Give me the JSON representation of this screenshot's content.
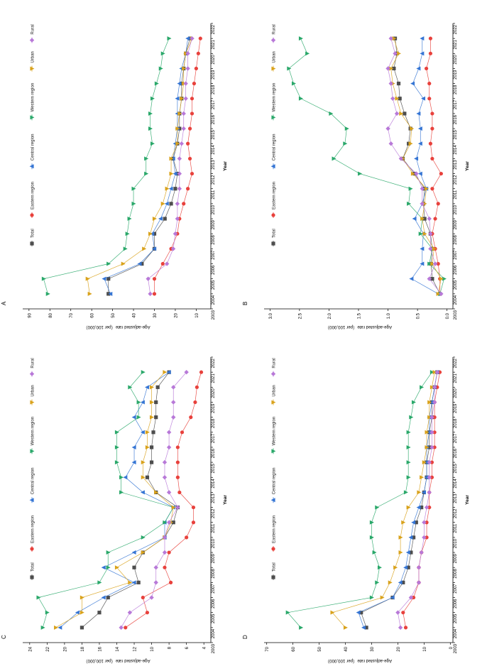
{
  "colors": {
    "Total": "#4d4d4d",
    "Eastern region": "#e8413c",
    "Central region": "#3575d4",
    "Western region": "#2aa86a",
    "Urban": "#d9a21b",
    "Rural": "#b879d8"
  },
  "markers": {
    "Total": "square",
    "Eastern region": "circle",
    "Central region": "triangle-up",
    "Western region": "triangle-down",
    "Urban": "triangle-down",
    "Rural": "diamond"
  },
  "chart_data": [
    {
      "panel": "A",
      "type": "line",
      "ylabel": "Age-adjusted rate（per 100,000）",
      "xlabel": "Year",
      "x": [
        2004,
        2005,
        2006,
        2007,
        2008,
        2009,
        2010,
        2011,
        2012,
        2013,
        2014,
        2015,
        2016,
        2017,
        2018,
        2019,
        2020,
        2021
      ],
      "xlim": [
        2003,
        2022
      ],
      "ylim": [
        3,
        93
      ],
      "yticks": [
        10,
        20,
        30,
        40,
        50,
        60,
        70,
        80,
        90
      ],
      "legend": [
        "Total",
        "Eastern region",
        "Central region",
        "Western region",
        "Urban",
        "Rural"
      ],
      "series": [
        {
          "name": "Total",
          "values": [
            52,
            52,
            36,
            30,
            30,
            25,
            22,
            20,
            19,
            21,
            19,
            18,
            18,
            17,
            17,
            16,
            15,
            13
          ]
        },
        {
          "name": "Eastern region",
          "values": [
            30,
            30,
            26,
            22,
            19,
            18,
            16,
            14,
            12,
            13,
            14,
            13,
            12,
            12,
            11,
            10,
            9,
            8
          ]
        },
        {
          "name": "Central region",
          "values": [
            51,
            54,
            37,
            30,
            31,
            27,
            24,
            22,
            20,
            21,
            20,
            19,
            19,
            19,
            18,
            17,
            15,
            14
          ]
        },
        {
          "name": "Western region",
          "values": [
            81,
            83,
            52,
            44,
            43,
            42,
            40,
            40,
            34,
            34,
            31,
            32,
            32,
            31,
            29,
            27,
            26,
            23
          ]
        },
        {
          "name": "Urban",
          "values": [
            61,
            62,
            45,
            35,
            32,
            30,
            26,
            24,
            22,
            22,
            19,
            19,
            18,
            17,
            16,
            16,
            15,
            12
          ]
        },
        {
          "name": "Rural",
          "values": [
            32,
            33,
            24,
            21,
            20,
            19,
            19,
            18,
            18,
            18,
            17,
            16,
            16,
            15,
            15,
            14,
            14,
            12
          ]
        }
      ]
    },
    {
      "panel": "B",
      "type": "line",
      "ylabel": "Age-adjusted rate（per 100,000）",
      "xlabel": "Year",
      "x": [
        2004,
        2005,
        2006,
        2007,
        2008,
        2009,
        2010,
        2011,
        2012,
        2013,
        2014,
        2015,
        2016,
        2017,
        2018,
        2019,
        2020,
        2021
      ],
      "xlim": [
        2003,
        2022
      ],
      "ylim": [
        -0.1,
        3.1
      ],
      "yticks": [
        0.0,
        0.5,
        1.0,
        1.5,
        2.0,
        2.5,
        3.0
      ],
      "legend": [
        "Total",
        "Eastern region",
        "Central region",
        "Western region",
        "Urban",
        "Rural"
      ],
      "series": [
        {
          "name": "Total",
          "values": [
            0.12,
            0.25,
            0.27,
            0.25,
            0.28,
            0.38,
            0.4,
            0.38,
            0.55,
            0.75,
            0.65,
            0.62,
            0.72,
            0.8,
            0.82,
            0.9,
            0.85,
            0.88
          ]
        },
        {
          "name": "Eastern region",
          "values": [
            0.12,
            0.12,
            0.15,
            0.2,
            0.25,
            0.2,
            0.15,
            0.25,
            0.1,
            0.25,
            0.28,
            0.25,
            0.25,
            0.3,
            0.3,
            0.35,
            0.28,
            0.28
          ]
        },
        {
          "name": "Central region",
          "values": [
            0.15,
            0.6,
            0.42,
            0.42,
            0.4,
            0.55,
            0.42,
            0.35,
            0.45,
            0.52,
            0.45,
            0.45,
            0.48,
            0.4,
            0.58,
            0.48,
            0.42,
            0.42
          ]
        },
        {
          "name": "Western region",
          "values": [
            0.12,
            0.05,
            0.3,
            0.25,
            0.45,
            0.42,
            0.65,
            0.62,
            1.48,
            1.92,
            1.73,
            1.7,
            1.97,
            2.48,
            2.6,
            2.68,
            2.37,
            2.48
          ]
        },
        {
          "name": "Urban",
          "values": [
            0.15,
            0.1,
            0.25,
            0.22,
            0.38,
            0.42,
            0.38,
            0.35,
            0.58,
            0.75,
            0.62,
            0.6,
            0.78,
            0.85,
            0.92,
            0.95,
            0.82,
            0.9
          ]
        },
        {
          "name": "Rural",
          "values": [
            0.1,
            0.3,
            0.2,
            0.28,
            0.28,
            0.3,
            0.42,
            0.42,
            0.52,
            0.78,
            0.95,
            1.0,
            0.85,
            0.92,
            0.95,
            1.0,
            0.88,
            0.95
          ]
        }
      ]
    },
    {
      "panel": "C",
      "type": "line",
      "ylabel": "Age-adjusted rate（per 100,000）",
      "xlabel": "Year",
      "x": [
        2004,
        2005,
        2006,
        2007,
        2008,
        2009,
        2010,
        2011,
        2012,
        2013,
        2014,
        2015,
        2016,
        2017,
        2018,
        2019,
        2020,
        2021
      ],
      "xlim": [
        2003,
        2022
      ],
      "ylim": [
        3.2,
        24.8
      ],
      "yticks": [
        4,
        6,
        8,
        10,
        12,
        14,
        16,
        18,
        20,
        22,
        24
      ],
      "legend": [
        "Total",
        "Eastern region",
        "Central region",
        "Western region",
        "Urban",
        "Rural"
      ],
      "series": [
        {
          "name": "Total",
          "values": [
            18,
            16,
            15,
            11.5,
            12,
            11,
            8.5,
            7.5,
            7,
            9.5,
            10.5,
            10,
            10,
            9.8,
            9.5,
            9.5,
            9.3,
            8
          ]
        },
        {
          "name": "Eastern region",
          "values": [
            13,
            10.5,
            11,
            7.8,
            8.5,
            8,
            6,
            5.2,
            5.2,
            6.8,
            7,
            7,
            7,
            6.5,
            5.5,
            5,
            4.8,
            4.3
          ]
        },
        {
          "name": "Central region",
          "values": [
            20.5,
            18.5,
            15.5,
            12,
            15.5,
            12,
            8.5,
            8.5,
            7.5,
            11,
            13,
            12,
            12,
            11,
            12,
            11,
            10.5,
            8
          ]
        },
        {
          "name": "Western region",
          "values": [
            22.5,
            22,
            23,
            16,
            15,
            15,
            11,
            8.5,
            7.5,
            13.5,
            13.5,
            14,
            14,
            14,
            11.5,
            11.5,
            12.5,
            11
          ]
        },
        {
          "name": "Urban",
          "values": [
            21,
            18,
            18,
            12.5,
            14,
            11,
            8.5,
            7.8,
            7.5,
            9.5,
            11,
            11,
            10.5,
            10.5,
            10,
            10,
            10,
            8.5
          ]
        },
        {
          "name": "Rural",
          "values": [
            13.5,
            12.5,
            10,
            9.5,
            9.5,
            8.5,
            8.5,
            8,
            7,
            8,
            8.5,
            8.5,
            8,
            8,
            7.5,
            7.5,
            7.5,
            6
          ]
        }
      ]
    },
    {
      "panel": "D",
      "type": "line",
      "ylabel": "Age-adjusted rate（per 100,000）",
      "xlabel": "Year",
      "x": [
        2004,
        2005,
        2006,
        2007,
        2008,
        2009,
        2010,
        2011,
        2012,
        2013,
        2014,
        2015,
        2016,
        2017,
        2018,
        2019,
        2020,
        2021
      ],
      "xlim": [
        2003,
        2022
      ],
      "ylim": [
        -1,
        71
      ],
      "yticks": [
        0,
        10,
        20,
        30,
        40,
        50,
        60,
        70
      ],
      "legend": [
        "Total",
        "Eastern region",
        "Central region",
        "Western region",
        "Urban",
        "Rural"
      ],
      "series": [
        {
          "name": "Total",
          "values": [
            32,
            34,
            22,
            18,
            16,
            15,
            14,
            13,
            11,
            10,
            9,
            9,
            8,
            8,
            7,
            7,
            6,
            5
          ]
        },
        {
          "name": "Eastern region",
          "values": [
            17,
            18,
            14,
            12,
            12,
            11,
            9,
            9,
            8,
            8,
            7,
            7,
            6,
            6,
            6,
            6,
            5,
            4
          ]
        },
        {
          "name": "Central region",
          "values": [
            33,
            35,
            22,
            19,
            17,
            16,
            15,
            14,
            12,
            10,
            9,
            9,
            9,
            8,
            8,
            7,
            6,
            5
          ]
        },
        {
          "name": "Western region",
          "values": [
            57,
            62,
            30,
            28,
            27,
            29,
            30,
            30,
            28,
            17,
            16,
            16,
            16,
            16,
            15,
            14,
            11,
            7
          ]
        },
        {
          "name": "Urban",
          "values": [
            40,
            45,
            26,
            23,
            21,
            19,
            19,
            18,
            16,
            12,
            11,
            10,
            9,
            9,
            8,
            8,
            7,
            6
          ]
        },
        {
          "name": "Rural",
          "values": [
            19,
            20,
            15,
            12,
            12,
            11,
            10,
            10,
            9,
            8,
            8,
            8,
            7,
            7,
            7,
            6,
            6,
            5
          ]
        }
      ]
    }
  ]
}
